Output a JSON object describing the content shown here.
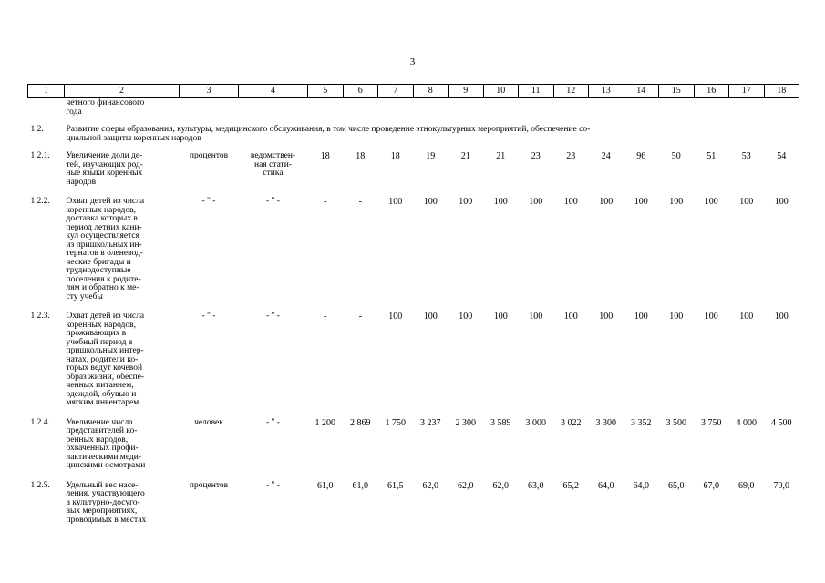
{
  "page_number": "3",
  "header": [
    "1",
    "2",
    "3",
    "4",
    "5",
    "6",
    "7",
    "8",
    "9",
    "10",
    "11",
    "12",
    "13",
    "14",
    "15",
    "16",
    "17",
    "18"
  ],
  "continuation_text": "четного финансового\nгода",
  "section": {
    "num": "1.2.",
    "title": "Развитие сферы образования, культуры, медицинского обслуживания, в том числе проведение этнокультурных мероприятий, обеспечение со-\nциальной защиты коренных народов"
  },
  "rows": [
    {
      "num": "1.2.1.",
      "name": "Увеличение доли де-\nтей, изучающих род-\nные языки коренных\nнародов",
      "unit": "процентов",
      "source": "ведомствен-\nная стати-\nстика",
      "values": [
        "18",
        "18",
        "18",
        "19",
        "21",
        "21",
        "23",
        "23",
        "24",
        "96",
        "50",
        "51",
        "53",
        "54"
      ]
    },
    {
      "num": "1.2.2.",
      "name": "Охват детей из числа\nкоренных народов,\nдоставка которых в\nпериод летних кани-\nкул осуществляется\nиз пришкольных ин-\nтернатов в оленевод-\nческие бригады и\nтруднодоступные\nпоселения к родите-\nлям и обратно к ме-\nсту учебы",
      "unit": "- \" -",
      "source": "- \" -",
      "values": [
        "-",
        "-",
        "100",
        "100",
        "100",
        "100",
        "100",
        "100",
        "100",
        "100",
        "100",
        "100",
        "100",
        "100"
      ]
    },
    {
      "num": "1.2.3.",
      "name": "Охват детей из числа\nкоренных народов,\nпроживающих в\nучебный период в\nпришкольных интер-\nнатах, родители ко-\nторых ведут кочевой\nобраз жизни, обеспе-\nченных питанием,\nодеждой, обувью и\nмягким инвентарем",
      "unit": "- \" -",
      "source": "- \" -",
      "values": [
        "-",
        "-",
        "100",
        "100",
        "100",
        "100",
        "100",
        "100",
        "100",
        "100",
        "100",
        "100",
        "100",
        "100"
      ]
    },
    {
      "num": "1.2.4.",
      "name": "Увеличение числа\nпредставителей ко-\nренных народов,\nохваченных профи-\nлактическими меди-\nцинскими осмотрами",
      "unit": "человек",
      "source": "- \" -",
      "values": [
        "1 200",
        "2 869",
        "1 750",
        "3 237",
        "2 300",
        "3 589",
        "3 000",
        "3 022",
        "3 300",
        "3 352",
        "3 500",
        "3 750",
        "4 000",
        "4 500"
      ]
    },
    {
      "num": "1.2.5.",
      "name": "Удельный вес насе-\nления, участвующего\nв культурно-досуго-\nвых мероприятиях,\nпроводимых в местах",
      "unit": "процентов",
      "source": "- \" -",
      "values": [
        "61,0",
        "61,0",
        "61,5",
        "62,0",
        "62,0",
        "62,0",
        "63,0",
        "65,2",
        "64,0",
        "64,0",
        "65,0",
        "67,0",
        "69,0",
        "70,0"
      ]
    }
  ]
}
